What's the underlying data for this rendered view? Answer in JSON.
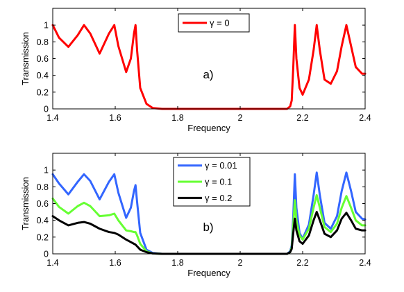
{
  "chart_data": [
    {
      "type": "line",
      "panel_label": "a)",
      "xlabel": "Frequency",
      "ylabel": "Transmission",
      "xlim": [
        1.4,
        2.4
      ],
      "ylim": [
        0,
        1.2
      ],
      "x_ticks": [
        "1.4",
        "1.6",
        "1.8",
        "2",
        "2.2",
        "2.4"
      ],
      "y_ticks": [
        "0",
        "0.2",
        "0.4",
        "0.6",
        "0.8",
        "1"
      ],
      "legend_position": "top-center",
      "grid": false,
      "series": [
        {
          "name": "γ = 0",
          "color": "#ff0000",
          "points": [
            [
              1.4,
              1.0
            ],
            [
              1.42,
              0.85
            ],
            [
              1.45,
              0.74
            ],
            [
              1.48,
              0.88
            ],
            [
              1.5,
              1.0
            ],
            [
              1.52,
              0.9
            ],
            [
              1.55,
              0.66
            ],
            [
              1.58,
              0.9
            ],
            [
              1.597,
              1.0
            ],
            [
              1.61,
              0.75
            ],
            [
              1.635,
              0.44
            ],
            [
              1.65,
              0.6
            ],
            [
              1.66,
              0.9
            ],
            [
              1.665,
              1.0
            ],
            [
              1.67,
              0.7
            ],
            [
              1.68,
              0.25
            ],
            [
              1.7,
              0.06
            ],
            [
              1.72,
              0.01
            ],
            [
              1.75,
              0.0
            ],
            [
              2.15,
              0.0
            ],
            [
              2.16,
              0.03
            ],
            [
              2.165,
              0.1
            ],
            [
              2.17,
              0.5
            ],
            [
              2.175,
              1.0
            ],
            [
              2.18,
              0.6
            ],
            [
              2.19,
              0.25
            ],
            [
              2.2,
              0.17
            ],
            [
              2.22,
              0.35
            ],
            [
              2.235,
              0.7
            ],
            [
              2.245,
              1.0
            ],
            [
              2.255,
              0.7
            ],
            [
              2.27,
              0.35
            ],
            [
              2.29,
              0.3
            ],
            [
              2.31,
              0.45
            ],
            [
              2.325,
              0.75
            ],
            [
              2.34,
              1.0
            ],
            [
              2.355,
              0.75
            ],
            [
              2.37,
              0.5
            ],
            [
              2.39,
              0.42
            ],
            [
              2.4,
              0.42
            ]
          ]
        }
      ]
    },
    {
      "type": "line",
      "panel_label": "b)",
      "xlabel": "Frequency",
      "ylabel": "Transmission",
      "xlim": [
        1.4,
        2.4
      ],
      "ylim": [
        0,
        1.2
      ],
      "x_ticks": [
        "1.4",
        "1.6",
        "1.8",
        "2",
        "2.2",
        "2.4"
      ],
      "y_ticks": [
        "0",
        "0.2",
        "0.4",
        "0.6",
        "0.8",
        "1"
      ],
      "legend_position": "top-center",
      "grid": false,
      "series": [
        {
          "name": "γ = 0.01",
          "color": "#3366ff",
          "points": [
            [
              1.4,
              0.95
            ],
            [
              1.42,
              0.84
            ],
            [
              1.45,
              0.71
            ],
            [
              1.48,
              0.86
            ],
            [
              1.5,
              0.95
            ],
            [
              1.52,
              0.87
            ],
            [
              1.55,
              0.65
            ],
            [
              1.58,
              0.86
            ],
            [
              1.597,
              0.95
            ],
            [
              1.61,
              0.73
            ],
            [
              1.635,
              0.43
            ],
            [
              1.65,
              0.55
            ],
            [
              1.66,
              0.75
            ],
            [
              1.665,
              0.82
            ],
            [
              1.67,
              0.62
            ],
            [
              1.68,
              0.25
            ],
            [
              1.7,
              0.05
            ],
            [
              1.72,
              0.01
            ],
            [
              1.75,
              0.0
            ],
            [
              2.15,
              0.0
            ],
            [
              2.16,
              0.03
            ],
            [
              2.165,
              0.1
            ],
            [
              2.17,
              0.45
            ],
            [
              2.175,
              0.95
            ],
            [
              2.18,
              0.55
            ],
            [
              2.19,
              0.25
            ],
            [
              2.2,
              0.18
            ],
            [
              2.22,
              0.35
            ],
            [
              2.235,
              0.7
            ],
            [
              2.245,
              0.97
            ],
            [
              2.255,
              0.7
            ],
            [
              2.27,
              0.37
            ],
            [
              2.29,
              0.3
            ],
            [
              2.31,
              0.45
            ],
            [
              2.325,
              0.75
            ],
            [
              2.34,
              0.97
            ],
            [
              2.355,
              0.75
            ],
            [
              2.37,
              0.5
            ],
            [
              2.39,
              0.42
            ],
            [
              2.4,
              0.41
            ]
          ]
        },
        {
          "name": "γ = 0.1",
          "color": "#66ff33",
          "points": [
            [
              1.4,
              0.66
            ],
            [
              1.42,
              0.56
            ],
            [
              1.45,
              0.48
            ],
            [
              1.48,
              0.57
            ],
            [
              1.5,
              0.61
            ],
            [
              1.52,
              0.57
            ],
            [
              1.55,
              0.45
            ],
            [
              1.58,
              0.46
            ],
            [
              1.597,
              0.48
            ],
            [
              1.61,
              0.4
            ],
            [
              1.635,
              0.28
            ],
            [
              1.65,
              0.27
            ],
            [
              1.66,
              0.26
            ],
            [
              1.665,
              0.26
            ],
            [
              1.67,
              0.22
            ],
            [
              1.68,
              0.12
            ],
            [
              1.7,
              0.03
            ],
            [
              1.72,
              0.005
            ],
            [
              1.75,
              0.0
            ],
            [
              2.15,
              0.0
            ],
            [
              2.16,
              0.02
            ],
            [
              2.165,
              0.08
            ],
            [
              2.17,
              0.35
            ],
            [
              2.175,
              0.64
            ],
            [
              2.18,
              0.4
            ],
            [
              2.19,
              0.22
            ],
            [
              2.2,
              0.17
            ],
            [
              2.22,
              0.3
            ],
            [
              2.235,
              0.55
            ],
            [
              2.245,
              0.7
            ],
            [
              2.255,
              0.55
            ],
            [
              2.27,
              0.32
            ],
            [
              2.29,
              0.26
            ],
            [
              2.31,
              0.36
            ],
            [
              2.325,
              0.55
            ],
            [
              2.34,
              0.69
            ],
            [
              2.355,
              0.55
            ],
            [
              2.37,
              0.4
            ],
            [
              2.39,
              0.34
            ],
            [
              2.4,
              0.34
            ]
          ]
        },
        {
          "name": "γ = 0.2",
          "color": "#000000",
          "points": [
            [
              1.4,
              0.45
            ],
            [
              1.42,
              0.4
            ],
            [
              1.45,
              0.34
            ],
            [
              1.48,
              0.37
            ],
            [
              1.5,
              0.38
            ],
            [
              1.52,
              0.36
            ],
            [
              1.55,
              0.3
            ],
            [
              1.58,
              0.26
            ],
            [
              1.597,
              0.25
            ],
            [
              1.61,
              0.23
            ],
            [
              1.635,
              0.17
            ],
            [
              1.65,
              0.14
            ],
            [
              1.66,
              0.12
            ],
            [
              1.665,
              0.11
            ],
            [
              1.67,
              0.09
            ],
            [
              1.68,
              0.05
            ],
            [
              1.7,
              0.02
            ],
            [
              1.72,
              0.005
            ],
            [
              1.75,
              0.0
            ],
            [
              2.15,
              0.0
            ],
            [
              2.16,
              0.02
            ],
            [
              2.165,
              0.06
            ],
            [
              2.17,
              0.25
            ],
            [
              2.175,
              0.42
            ],
            [
              2.18,
              0.28
            ],
            [
              2.19,
              0.15
            ],
            [
              2.2,
              0.12
            ],
            [
              2.22,
              0.22
            ],
            [
              2.235,
              0.4
            ],
            [
              2.245,
              0.5
            ],
            [
              2.255,
              0.4
            ],
            [
              2.27,
              0.24
            ],
            [
              2.29,
              0.2
            ],
            [
              2.31,
              0.28
            ],
            [
              2.325,
              0.42
            ],
            [
              2.34,
              0.49
            ],
            [
              2.355,
              0.4
            ],
            [
              2.37,
              0.3
            ],
            [
              2.39,
              0.28
            ],
            [
              2.4,
              0.28
            ]
          ]
        }
      ]
    }
  ]
}
